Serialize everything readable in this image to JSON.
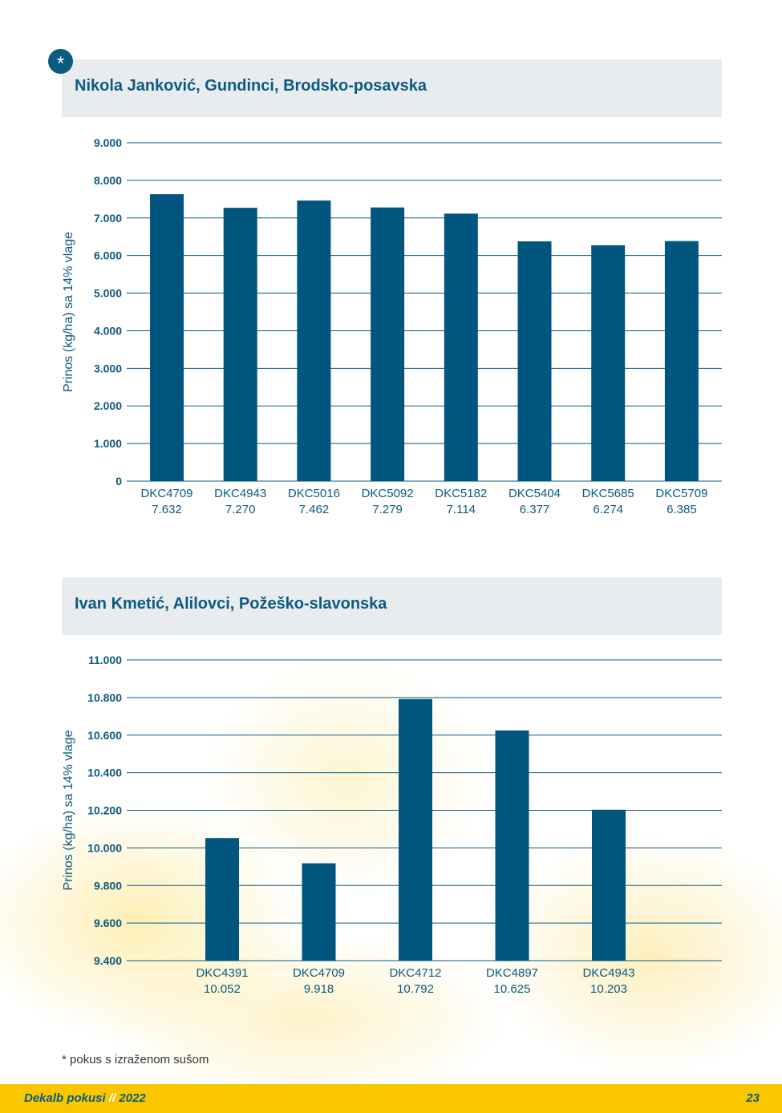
{
  "page": {
    "badge": "*",
    "footnote": "* pokus s izraženom sušom",
    "footer": {
      "title": "Dekalb pokusi",
      "separator": "//",
      "year": "2022",
      "page_number": "23"
    },
    "colors": {
      "bar": "#00567f",
      "title": "#0b5a80",
      "header_bg": "#e8ecef",
      "footer_bg": "#f8c700"
    }
  },
  "chart_data": [
    {
      "type": "bar",
      "title": "Nikola Janković, Gundinci, Brodsko-posavska",
      "ylabel": "Prinos (kg/ha) sa 14% vlage",
      "xlabel": "",
      "ylim": [
        0,
        9000
      ],
      "yticks": [
        0,
        1000,
        2000,
        3000,
        4000,
        5000,
        6000,
        7000,
        8000,
        9000
      ],
      "ytick_labels": [
        "0",
        "1.000",
        "2.000",
        "3.000",
        "4.000",
        "5.000",
        "6.000",
        "7.000",
        "8.000",
        "9.000"
      ],
      "grid": true,
      "categories": [
        "DKC4709",
        "DKC4943",
        "DKC5016",
        "DKC5092",
        "DKC5182",
        "DKC5404",
        "DKC5685",
        "DKC5709"
      ],
      "values": [
        7632,
        7270,
        7462,
        7279,
        7114,
        6377,
        6274,
        6385
      ],
      "value_labels": [
        "7.632",
        "7.270",
        "7.462",
        "7.279",
        "7.114",
        "6.377",
        "6.274",
        "6.385"
      ]
    },
    {
      "type": "bar",
      "title": "Ivan Kmetić, Alilovci, Požeško-slavonska",
      "ylabel": "Prinos (kg/ha) sa 14% vlage",
      "xlabel": "",
      "ylim": [
        9400,
        11000
      ],
      "yticks": [
        9400,
        9600,
        9800,
        10000,
        10200,
        10400,
        10600,
        10800,
        11000
      ],
      "ytick_labels": [
        "9.400",
        "9.600",
        "9.800",
        "10.000",
        "10.200",
        "10.400",
        "10.600",
        "10.800",
        "11.000"
      ],
      "grid": true,
      "categories": [
        "DKC4391",
        "DKC4709",
        "DKC4712",
        "DKC4897",
        "DKC4943"
      ],
      "values": [
        10052,
        9918,
        10792,
        10625,
        10203
      ],
      "value_labels": [
        "10.052",
        "9.918",
        "10.792",
        "10.625",
        "10.203"
      ]
    }
  ]
}
